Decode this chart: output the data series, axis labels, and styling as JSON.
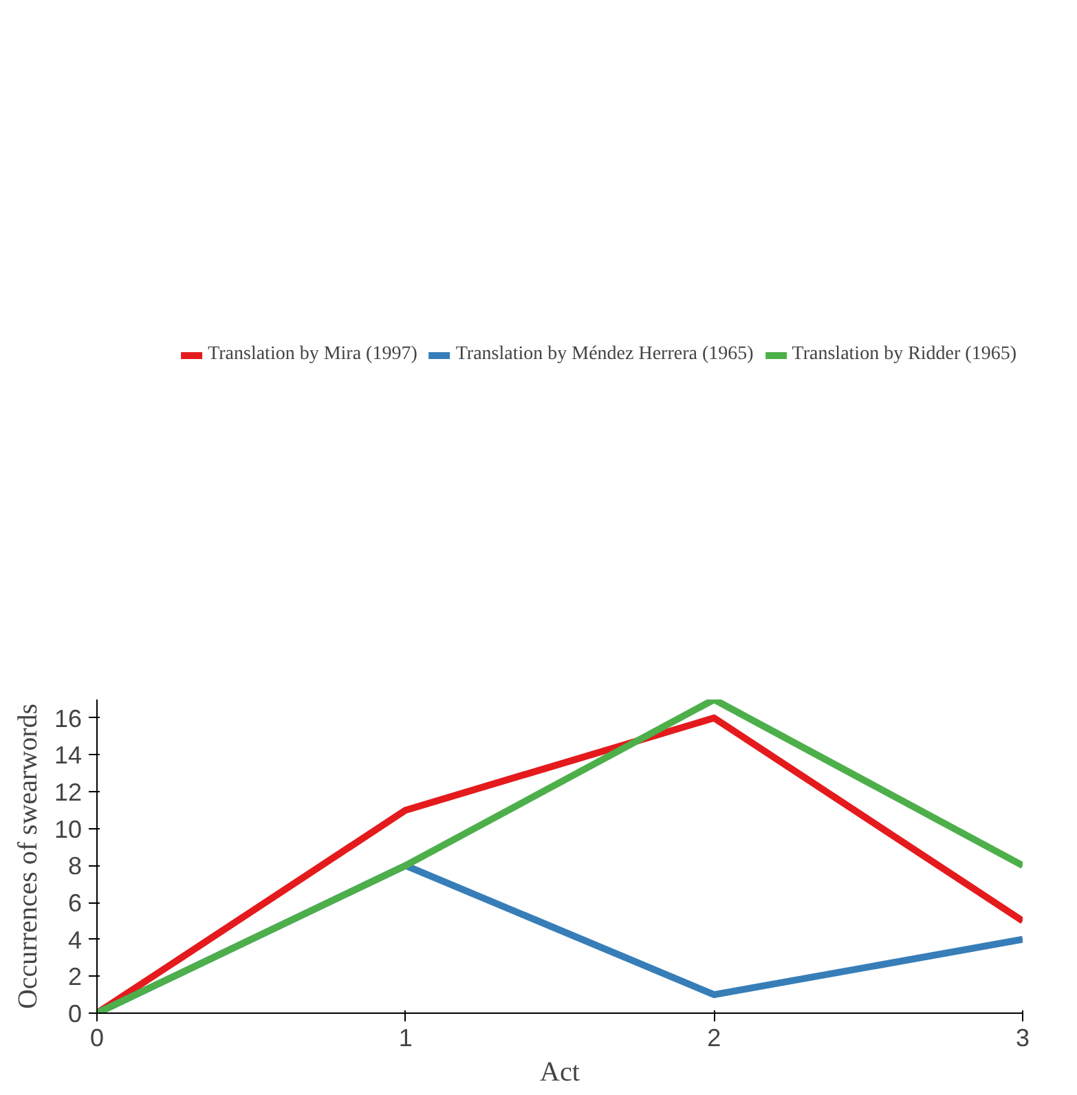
{
  "chart_data": {
    "type": "line",
    "xlabel": "Act",
    "ylabel": "Occurrences of swearwords",
    "x": [
      0,
      1,
      2,
      3
    ],
    "xlim": [
      0,
      3
    ],
    "xticks": [
      0,
      1,
      2,
      3
    ],
    "ylim": [
      0,
      17
    ],
    "yticks": [
      0,
      2,
      4,
      6,
      8,
      10,
      12,
      14,
      16
    ],
    "series": [
      {
        "name": "Translation by Mira (1997)",
        "color": "#e41a1c",
        "values": [
          0,
          11,
          16,
          5
        ]
      },
      {
        "name": "Translation by Méndez Herrera (1965)",
        "color": "#377eb8",
        "values": [
          0,
          8,
          1,
          4
        ]
      },
      {
        "name": "Translation by Ridder (1965)",
        "color": "#4daf4a",
        "values": [
          0,
          8,
          17,
          8
        ]
      }
    ],
    "legend": "top",
    "grid": false,
    "marker": "none",
    "line_style": "solid"
  }
}
